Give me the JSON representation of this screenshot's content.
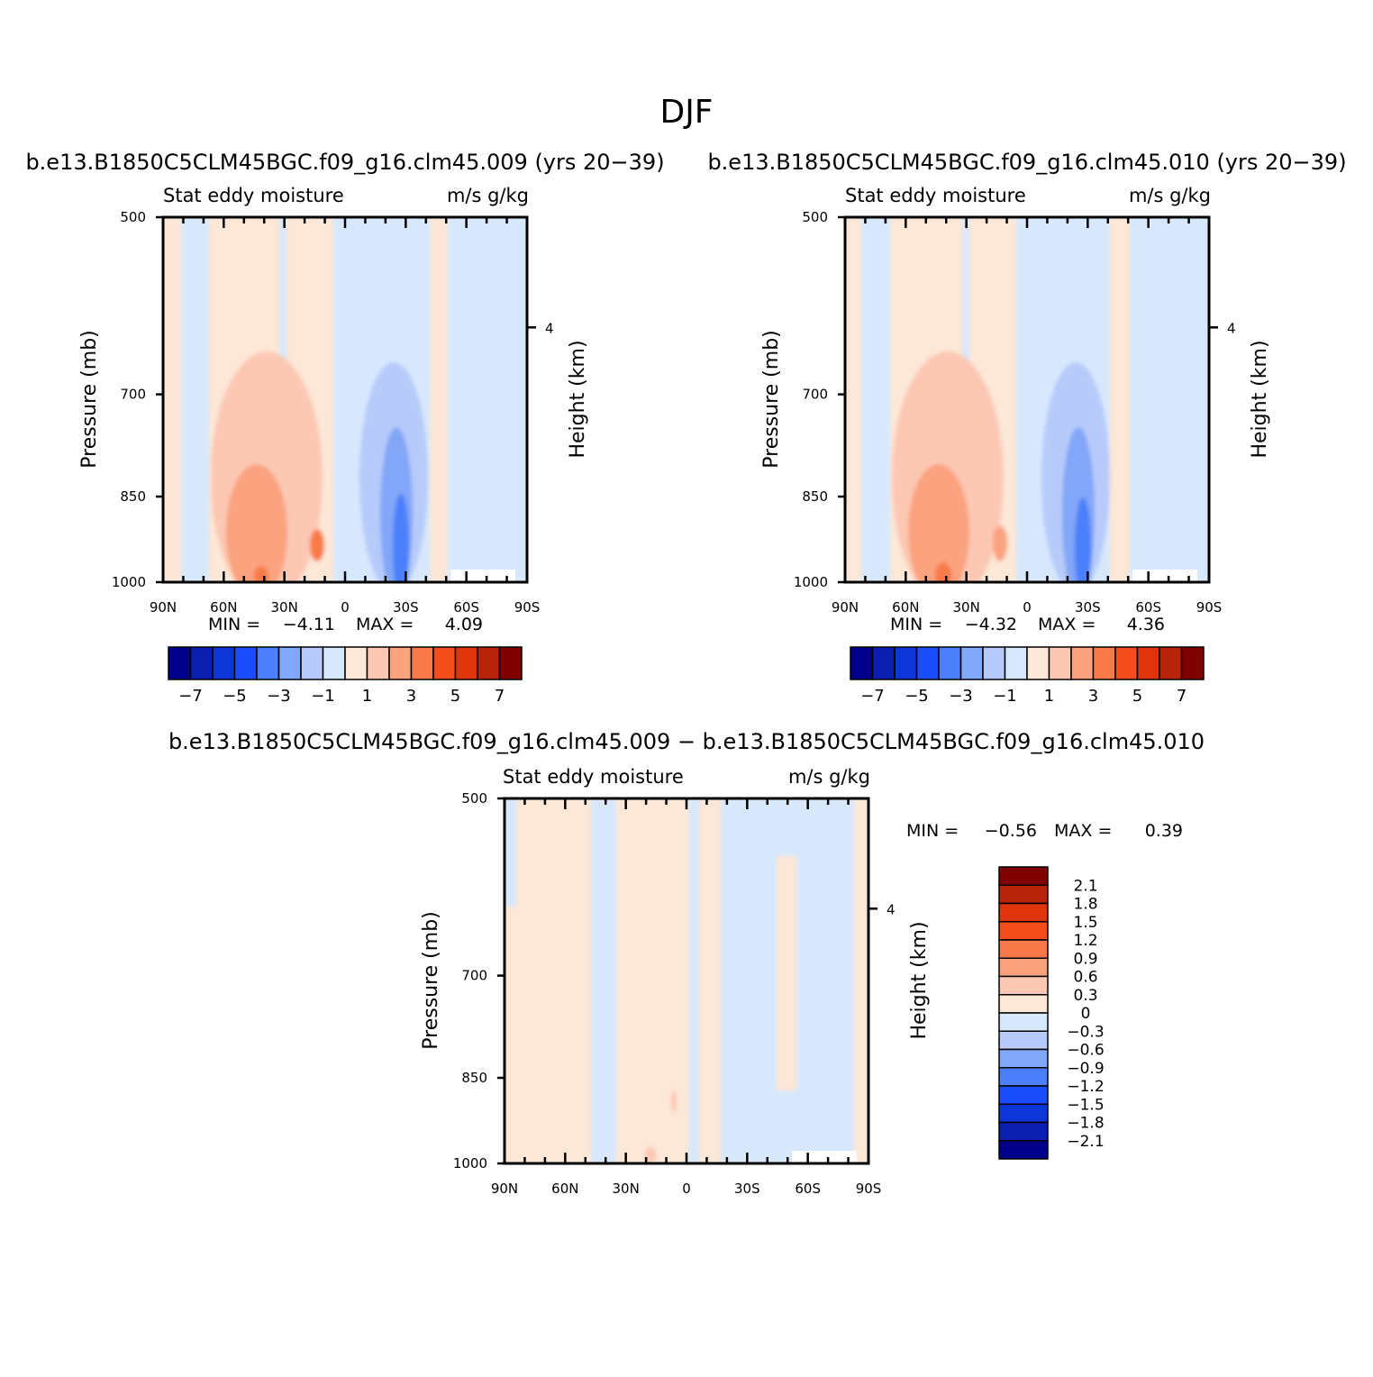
{
  "figure": {
    "title": "DJF",
    "colors": {
      "neg7": "#00008a",
      "neg6": "#0a1fb0",
      "neg5": "#0d36d8",
      "neg4": "#1c4dfb",
      "neg3": "#4b7ffb",
      "neg2": "#82a6f8",
      "neg1": "#b7cbfa",
      "neg0": "#d7e8fd",
      "pos0": "#fde7d6",
      "pos1": "#fcc8b3",
      "pos2": "#fba27f",
      "pos3": "#f87a4a",
      "pos4": "#f24d1a",
      "pos5": "#e0350a",
      "pos6": "#b8240a",
      "pos7": "#800000"
    }
  },
  "chart_data": [
    {
      "type": "heatmap",
      "title": "b.e13.B1850C5CLM45BGC.f09_g16.clm45.009 (yrs 20−39)",
      "subtitle_left": "Stat eddy moisture",
      "subtitle_right": "m/s g/kg",
      "ylabel": "Pressure (mb)",
      "ylabel_right": "Height (km)",
      "x_ticks": [
        "90N",
        "60N",
        "30N",
        "0",
        "30S",
        "60S",
        "90S"
      ],
      "y_ticks": [
        "500",
        "700",
        "850",
        "1000"
      ],
      "y_right_ticks": [
        "4"
      ],
      "ylim": [
        1000,
        500
      ],
      "xlim": [
        90,
        -90
      ],
      "y_scale": "log",
      "min_label": "MIN =",
      "min_value": "−4.11",
      "max_label": "MAX =",
      "max_value": "4.09",
      "colorbar_labels": [
        "−7",
        "−5",
        "−3",
        "−1",
        "1",
        "3",
        "5",
        "7"
      ]
    },
    {
      "type": "heatmap",
      "title": "b.e13.B1850C5CLM45BGC.f09_g16.clm45.010 (yrs 20−39)",
      "subtitle_left": "Stat eddy moisture",
      "subtitle_right": "m/s g/kg",
      "ylabel": "Pressure (mb)",
      "ylabel_right": "Height (km)",
      "x_ticks": [
        "90N",
        "60N",
        "30N",
        "0",
        "30S",
        "60S",
        "90S"
      ],
      "y_ticks": [
        "500",
        "700",
        "850",
        "1000"
      ],
      "y_right_ticks": [
        "4"
      ],
      "ylim": [
        1000,
        500
      ],
      "xlim": [
        90,
        -90
      ],
      "y_scale": "log",
      "min_label": "MIN =",
      "min_value": "−4.32",
      "max_label": "MAX =",
      "max_value": "4.36",
      "colorbar_labels": [
        "−7",
        "−5",
        "−3",
        "−1",
        "1",
        "3",
        "5",
        "7"
      ]
    },
    {
      "type": "heatmap",
      "title": "b.e13.B1850C5CLM45BGC.f09_g16.clm45.009 − b.e13.B1850C5CLM45BGC.f09_g16.clm45.010",
      "subtitle_left": "Stat eddy moisture",
      "subtitle_right": "m/s g/kg",
      "ylabel": "Pressure (mb)",
      "ylabel_right": "Height (km)",
      "x_ticks": [
        "90N",
        "60N",
        "30N",
        "0",
        "30S",
        "60S",
        "90S"
      ],
      "y_ticks": [
        "500",
        "700",
        "850",
        "1000"
      ],
      "y_right_ticks": [
        "4"
      ],
      "ylim": [
        1000,
        500
      ],
      "xlim": [
        90,
        -90
      ],
      "y_scale": "log",
      "min_label": "MIN =",
      "min_value": "−0.56",
      "max_label": "MAX =",
      "max_value": "0.39",
      "colorbar_labels": [
        "2.1",
        "1.8",
        "1.5",
        "1.2",
        "0.9",
        "0.6",
        "0.3",
        "0",
        "−0.3",
        "−0.6",
        "−0.9",
        "−1.2",
        "−1.5",
        "−1.8",
        "−2.1"
      ]
    }
  ]
}
